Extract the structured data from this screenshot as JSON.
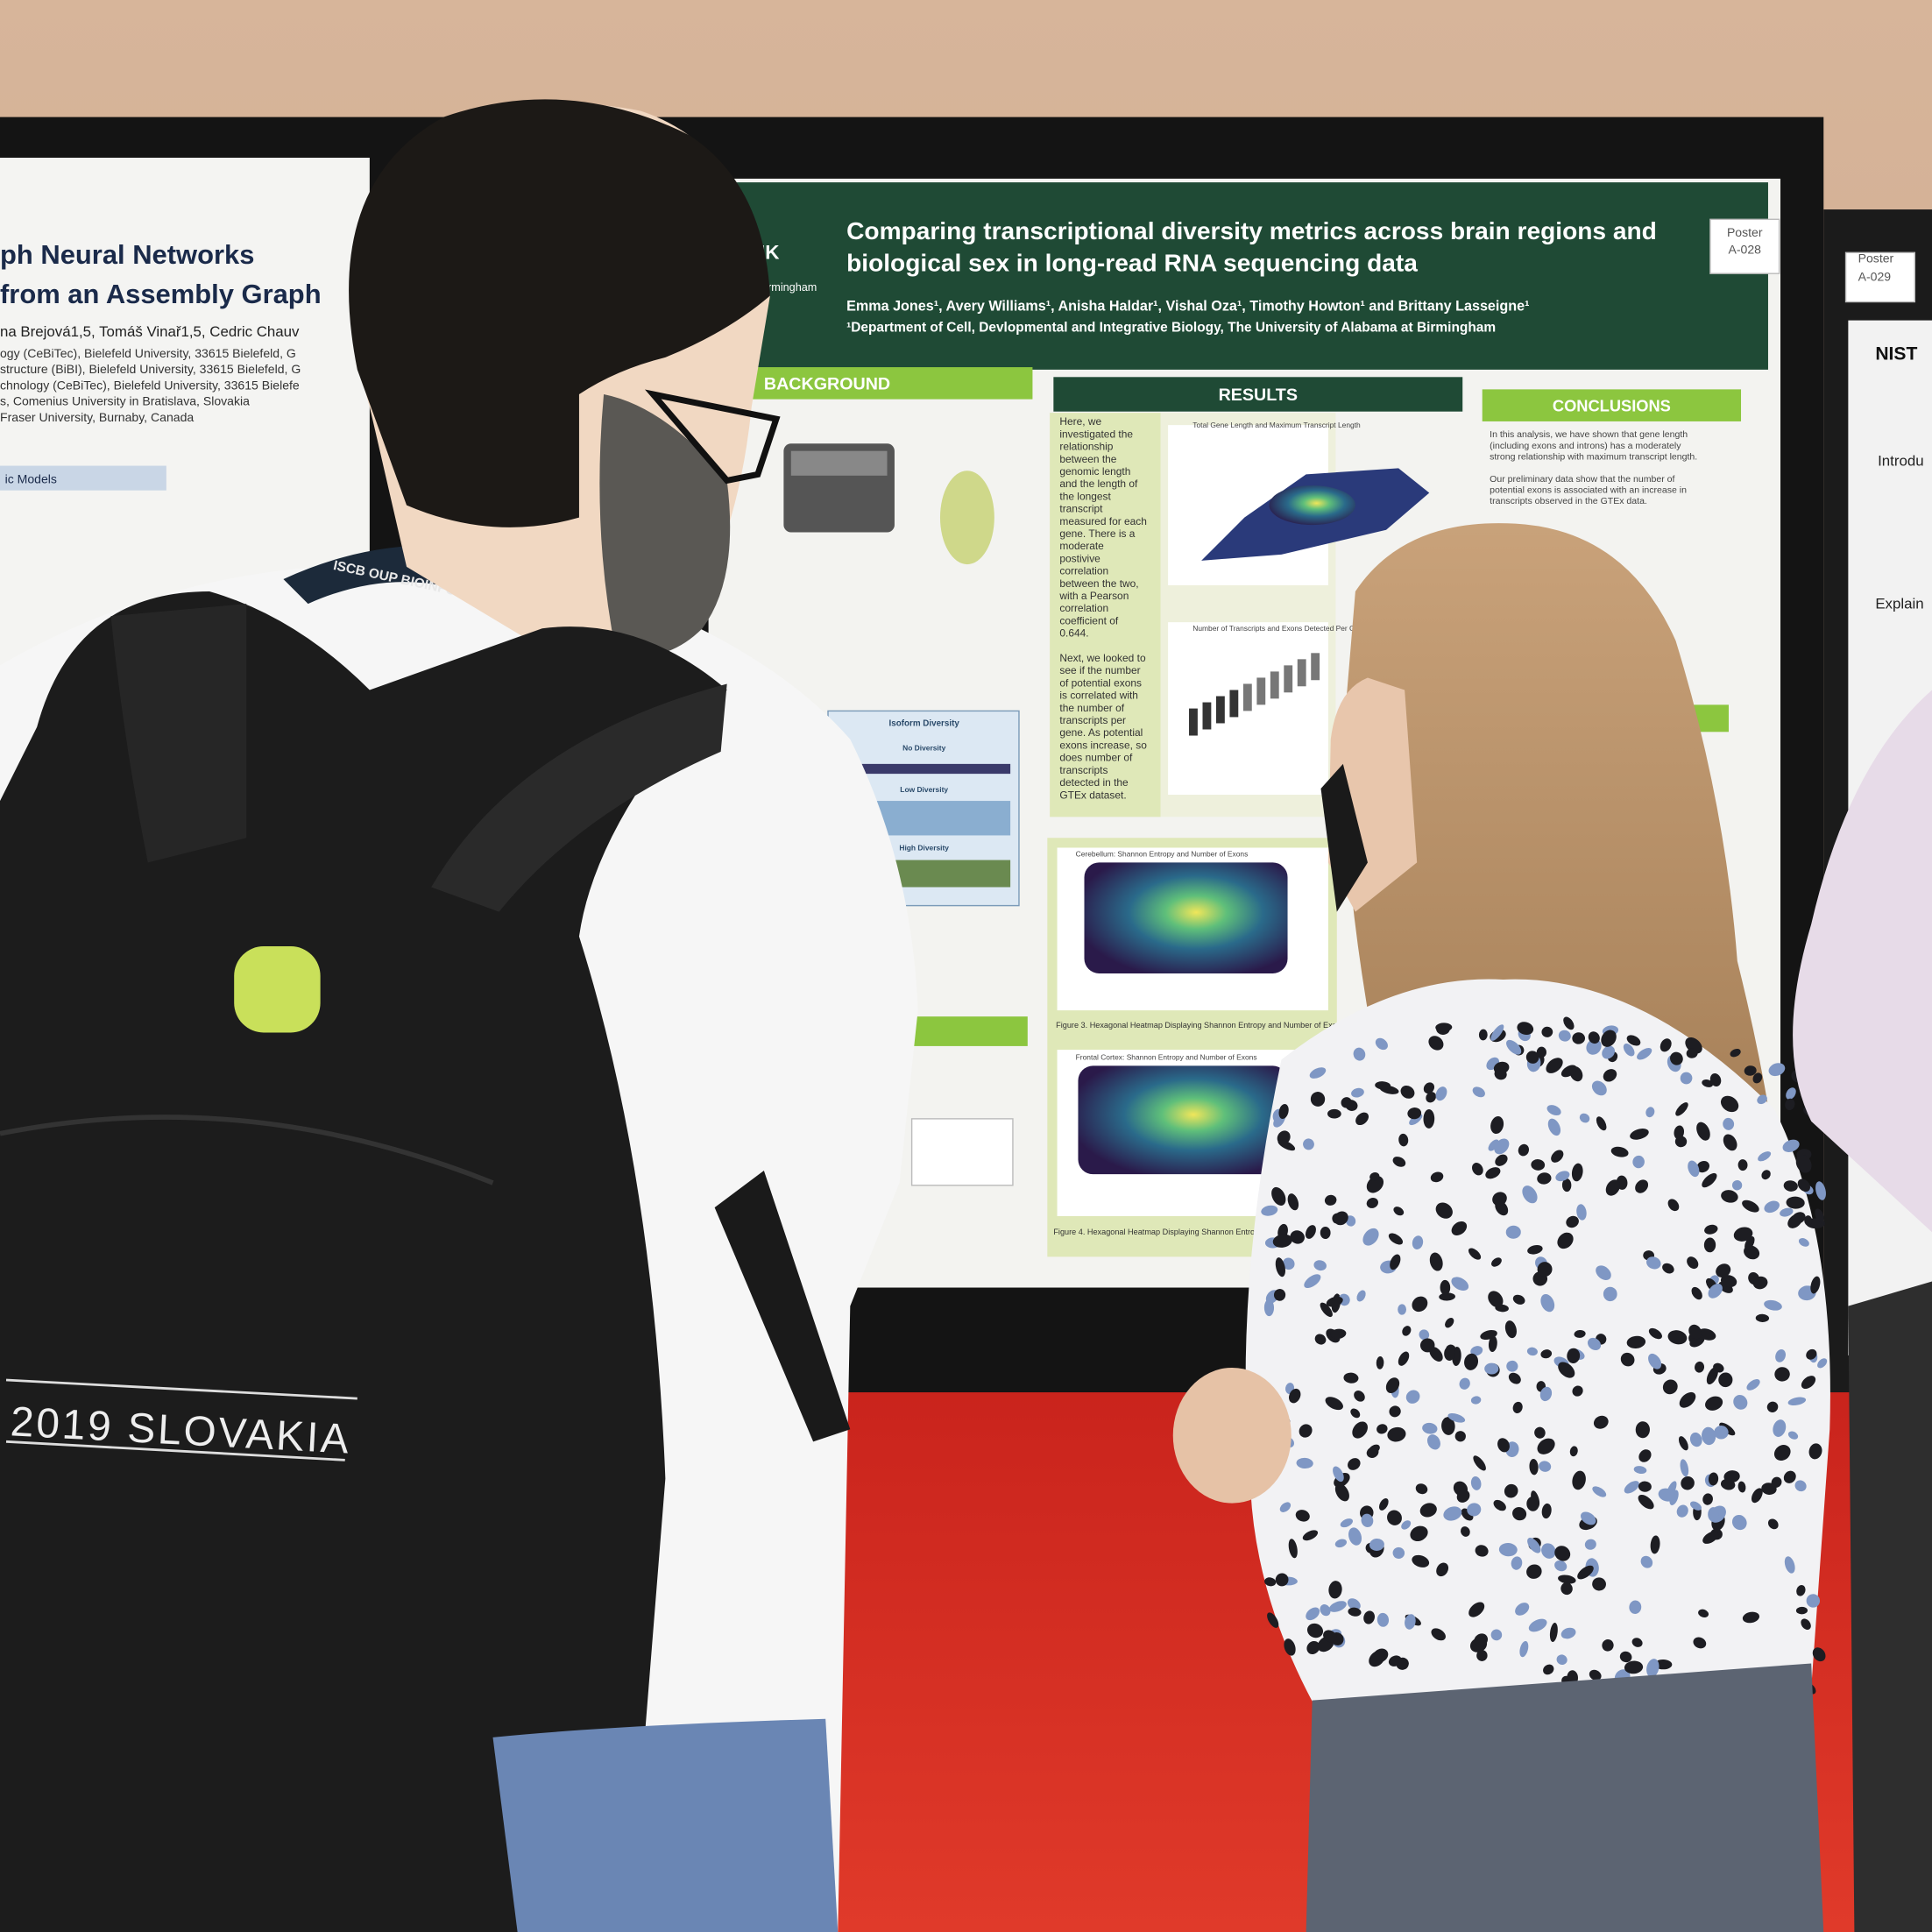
{
  "left_poster": {
    "title_lines": [
      "ph Neural Networks",
      "from an Assembly Graph"
    ],
    "authors": "na Brejová1,5, Tomáš Vinař1,5, Cedric Chauv",
    "affiliations": [
      "ogy (CeBiTec), Bielefeld University, 33615 Bielefeld, G",
      "structure (BiBI), Bielefeld University, 33615 Bielefeld, G",
      "chnology (CeBiTec), Bielefeld University, 33615 Bielefe",
      "s, Comenius University in Bratislava, Slovakia",
      "Fraser University, Burnaby, Canada"
    ],
    "section": "ic Models"
  },
  "main_poster": {
    "title_lines": [
      "Comparing transcriptional diversity metrics across brain regions and",
      "biological sex in long-read RNA sequencing data"
    ],
    "authors": "Emma Jones¹, Avery Williams¹, Anisha Haldar¹, Vishal Oza¹, Timothy Howton¹ and Brittany Lasseigne¹",
    "affiliation": "¹Department of Cell, Devlopmental and Integrative Biology, The University of Alabama at Birmingham",
    "tag": [
      "Poster",
      "A-028"
    ],
    "logo": "INK",
    "logo_sub": "Birmingham",
    "sections": {
      "background": "BACKGROUND",
      "results": "RESULTS",
      "conclusions": "CONCLUSIONS"
    },
    "results_text": [
      "Here, we",
      "investigated the",
      "relationship",
      "between the",
      "genomic length",
      "and the length of",
      "the longest",
      "transcript",
      "measured for each",
      "gene. There is a",
      "moderate",
      "postivive",
      "correlation",
      "between the two,",
      "with a Pearson",
      "correlation",
      "coefficient of",
      "0.644.",
      "",
      "Next, we looked to",
      "see if the number",
      "of potential exons",
      "is correlated with",
      "the number of",
      "transcripts per",
      "gene. As potential",
      "exons increase, so",
      "does number of",
      "transcripts",
      "detected in the",
      "GTEx dataset."
    ],
    "figure_titles": [
      "Total Gene Length and Maximum Transcript Length",
      "Number of Transcripts and Exons Detected Per Gene",
      "Cerebellum: Shannon Entropy and Number of Exons",
      "Frontal Cortex: Shannon Entropy and Number of Exons"
    ],
    "figure_captions": [
      "Figure 3. Hexagonal Heatmap Displaying Shannon Entropy and Number of Exons in Cerebellar Tissue Samples",
      "Figure 4. Hexagonal Heatmap Displaying Shannon Entropy and Number of Exons in Frontal Cortex (BA 9) Tissue Samples"
    ],
    "isoform": {
      "title": "Isoform Diversity",
      "levels": [
        "No Diversity",
        "Low Diversity",
        "High Diversity"
      ]
    },
    "conclusions_text": [
      "In this analysis, we have shown that gene length",
      "(including exons and introns) has a moderately",
      "strong relationship with maximum transcript length.",
      "",
      "Our preliminary data show that the number of",
      "potential exons is associated with an increase in",
      "transcripts observed in the GTEx data."
    ]
  },
  "neighbor_poster": {
    "tag": [
      "Poster",
      "A-029"
    ],
    "logo": "NIST",
    "headings": [
      "Introdu",
      "Explain"
    ]
  },
  "lanyard": "ISCB OUP BIOINFORMATI",
  "backpack": [
    "2019 SLOVAKIA"
  ]
}
